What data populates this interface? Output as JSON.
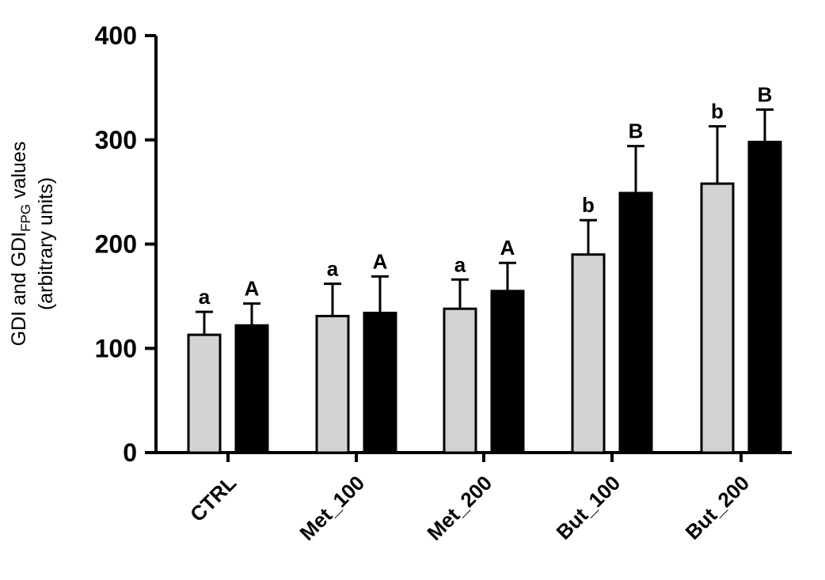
{
  "chart_data": {
    "type": "bar",
    "ylabel_main": "GDI and GDI",
    "ylabel_sub": "FPG",
    "ylabel_tail": " values",
    "ylabel_line2": "(arbitrary units)",
    "ylim": [
      0,
      400
    ],
    "yticks": [
      "0",
      "100",
      "200",
      "300",
      "400"
    ],
    "categories": [
      "CTRL",
      "Met_100",
      "Met_200",
      "But_100",
      "But_200"
    ],
    "series": [
      {
        "color": "#d3d3d3",
        "values": [
          113,
          131,
          138,
          190,
          258
        ],
        "error_upper": [
          135,
          162,
          166,
          223,
          313
        ],
        "letters": [
          "a",
          "a",
          "a",
          "b",
          "b"
        ]
      },
      {
        "color": "#000000",
        "values": [
          122,
          134,
          155,
          249,
          298
        ],
        "error_upper": [
          143,
          169,
          182,
          294,
          329
        ],
        "letters": [
          "A",
          "A",
          "A",
          "B",
          "B"
        ]
      }
    ],
    "grid": false,
    "legend": "none"
  }
}
